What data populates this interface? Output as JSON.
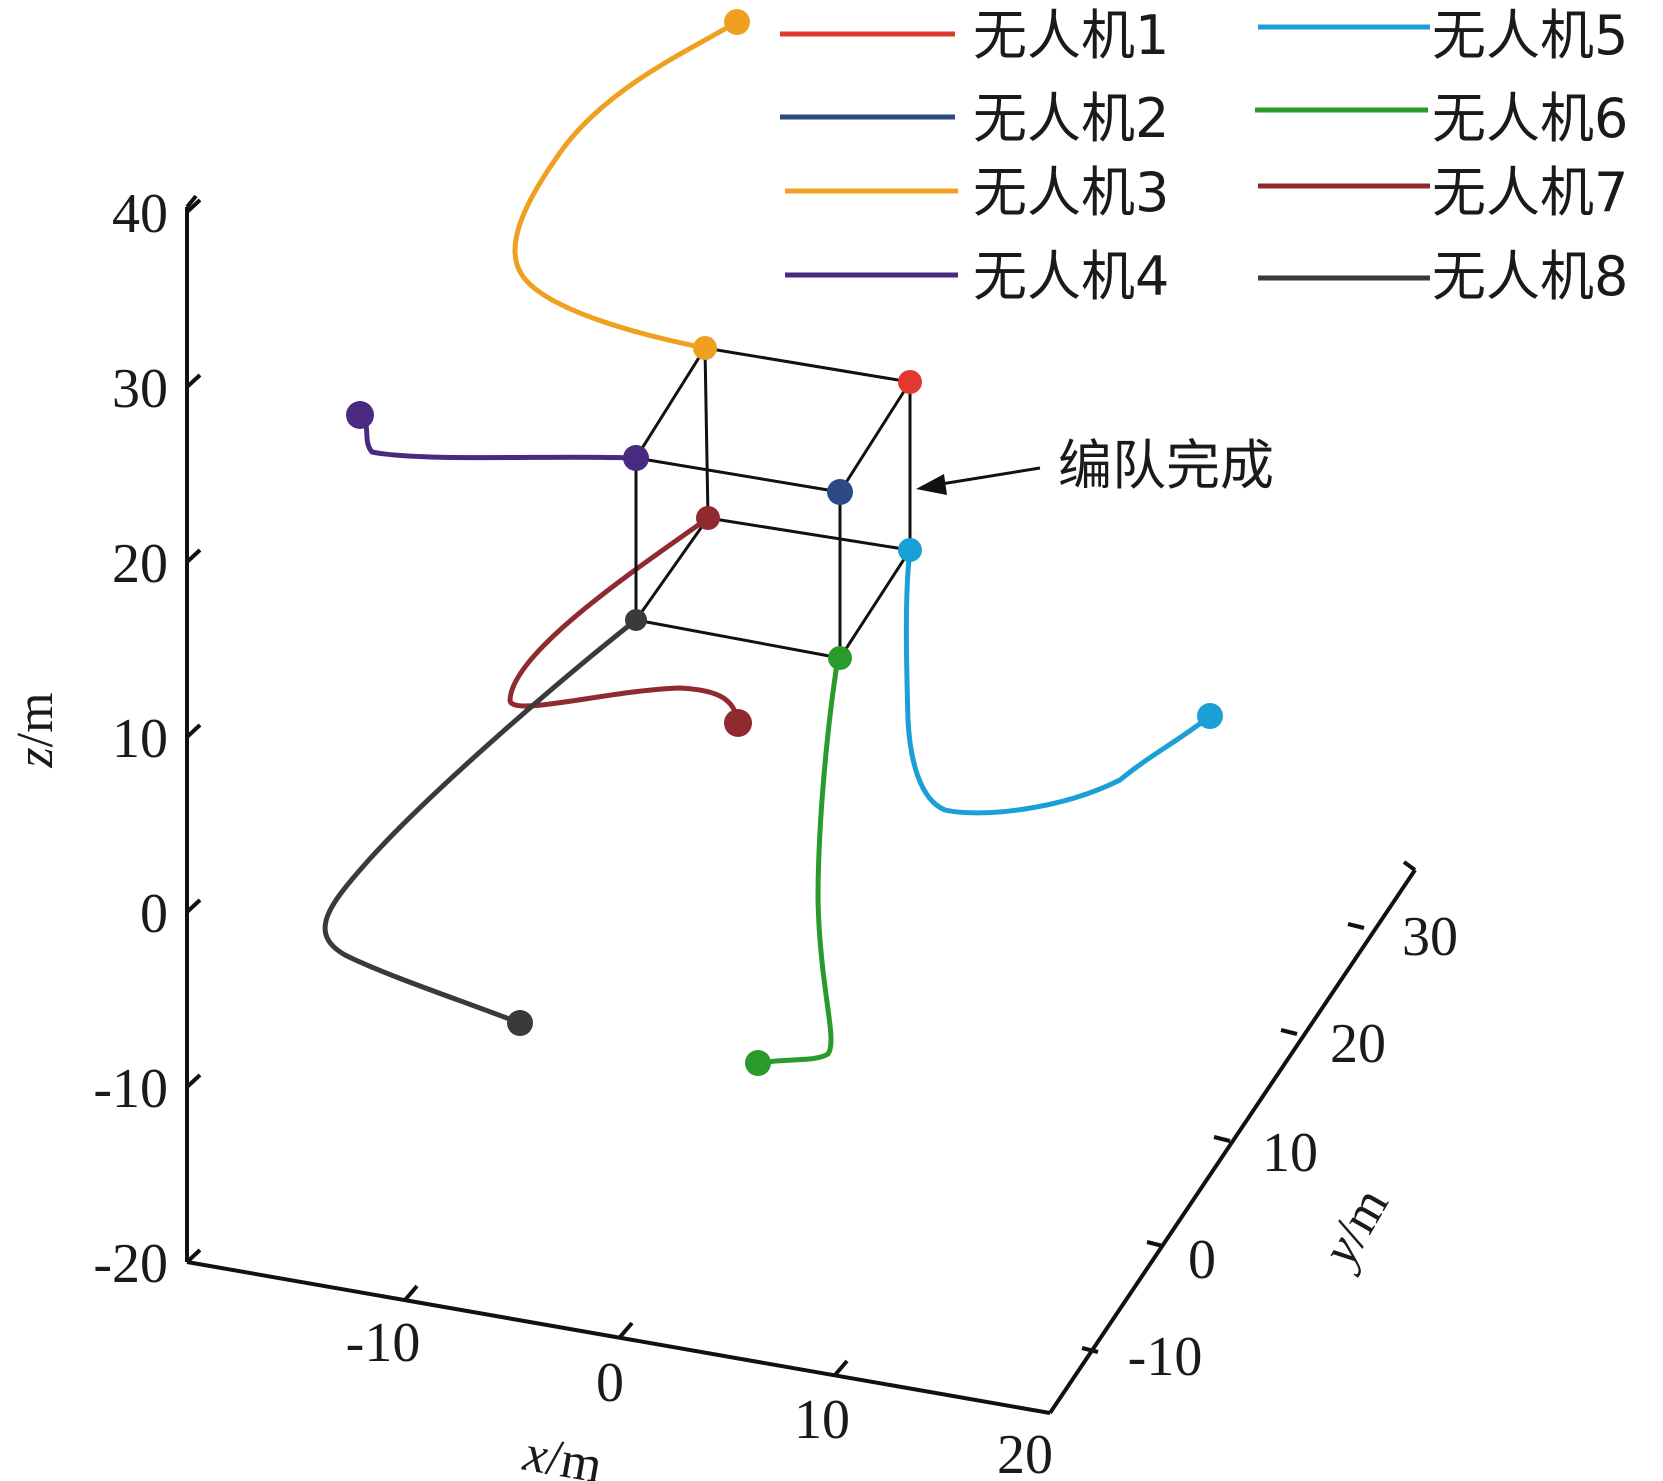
{
  "chart_data": {
    "type": "line3d",
    "xlabel": "x/m",
    "ylabel": "y/m",
    "zlabel": "z/m",
    "xticks": [
      -10,
      0,
      10,
      20
    ],
    "yticks": [
      -10,
      0,
      10,
      20,
      30
    ],
    "zticks": [
      -20,
      -10,
      0,
      10,
      20,
      30,
      40
    ],
    "xlim": [
      -20,
      20
    ],
    "ylim": [
      -20,
      35
    ],
    "zlim": [
      -20,
      40
    ],
    "annotation": "编队完成",
    "series": [
      {
        "name": "无人机1",
        "color": "#e03a2e"
      },
      {
        "name": "无人机2",
        "color": "#2e4a86"
      },
      {
        "name": "无人机3",
        "color": "#f0a020"
      },
      {
        "name": "无人机4",
        "color": "#4a2a80"
      },
      {
        "name": "无人机5",
        "color": "#1a9fd6"
      },
      {
        "name": "无人机6",
        "color": "#2a9a2a"
      },
      {
        "name": "无人机7",
        "color": "#8e2a30"
      },
      {
        "name": "无人机8",
        "color": "#3a3a3a"
      }
    ]
  }
}
